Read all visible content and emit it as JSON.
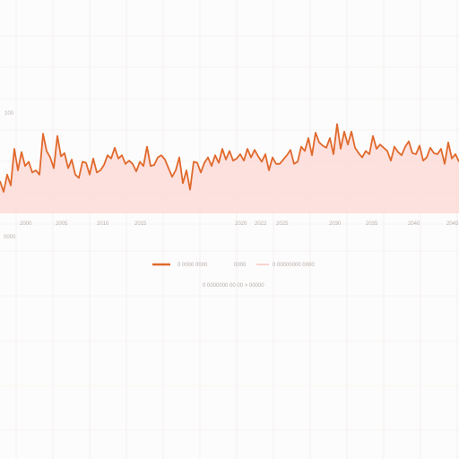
{
  "colors": {
    "line": "#e0692c",
    "area": "#fcdcd8",
    "grid": "#efe9e6",
    "tick_text": "#b9b2ad",
    "legend_line_2": "#f2a9a0"
  },
  "chart_data": {
    "type": "area",
    "grid": true,
    "x": [
      0,
      1,
      2,
      3,
      4,
      5,
      6,
      7,
      8,
      9,
      10,
      11,
      12,
      13,
      14,
      15,
      16,
      17,
      18,
      19,
      20,
      21,
      22,
      23,
      24,
      25,
      26,
      27,
      28,
      29,
      30,
      31,
      32,
      33,
      34,
      35,
      36,
      37,
      38,
      39,
      40,
      41,
      42,
      43,
      44,
      45,
      46,
      47,
      48,
      49,
      50,
      51,
      52,
      53,
      54,
      55,
      56,
      57,
      58,
      59,
      60,
      61,
      62,
      63,
      64,
      65,
      66,
      67,
      68,
      69,
      70,
      71,
      72,
      73,
      74,
      75,
      76,
      77,
      78,
      79,
      80,
      81,
      82,
      83,
      84,
      85,
      86,
      87,
      88,
      89,
      90,
      91,
      92,
      93,
      94,
      95,
      96,
      97,
      98,
      99,
      100,
      101,
      102,
      103,
      104,
      105,
      106,
      107,
      108,
      109,
      110,
      111,
      112,
      113,
      114,
      115,
      116,
      117,
      118,
      119,
      120,
      121,
      122,
      123,
      124,
      125,
      126,
      127,
      128
    ],
    "series": [
      {
        "values": [
          30,
          20,
          36,
          26,
          60,
          40,
          57,
          44,
          48,
          38,
          40,
          36,
          74,
          58,
          52,
          42,
          72,
          53,
          56,
          42,
          50,
          36,
          33,
          48,
          47,
          36,
          51,
          38,
          40,
          45,
          54,
          51,
          61,
          51,
          54,
          46,
          49,
          46,
          39,
          48,
          44,
          62,
          44,
          45,
          52,
          54,
          50,
          42,
          34,
          40,
          52,
          28,
          40,
          22,
          48,
          47,
          38,
          47,
          52,
          44,
          54,
          47,
          60,
          50,
          58,
          49,
          51,
          55,
          49,
          60,
          52,
          59,
          53,
          48,
          55,
          40,
          52,
          46,
          46,
          50,
          54,
          59,
          46,
          48,
          62,
          58,
          70,
          54,
          75,
          66,
          63,
          61,
          70,
          55,
          83,
          60,
          76,
          64,
          76,
          61,
          56,
          52,
          58,
          55,
          72,
          60,
          64,
          61,
          58,
          49,
          62,
          57,
          54,
          62,
          67,
          56,
          55,
          63,
          49,
          52,
          61,
          56,
          55,
          60,
          46,
          66,
          51,
          55,
          48
        ],
        "values_note_removed": true
      }
    ],
    "xlim": [
      0,
      128
    ],
    "ylim": [
      0,
      100
    ],
    "x_tick_labels": [
      "2000",
      "2005",
      "2010",
      "2015",
      "2020",
      "2022",
      "2025",
      "2030",
      "2035",
      "2040",
      "2045"
    ],
    "y_tick_labels": [
      "100",
      "0000"
    ],
    "legend": [
      {
        "label": "0 0000 0000",
        "extra": "0000",
        "style": "line"
      },
      {
        "label": "0 00000000 0000",
        "style": "thin-line"
      }
    ],
    "footer_text": "0 0000000 00  00  > 00000"
  }
}
